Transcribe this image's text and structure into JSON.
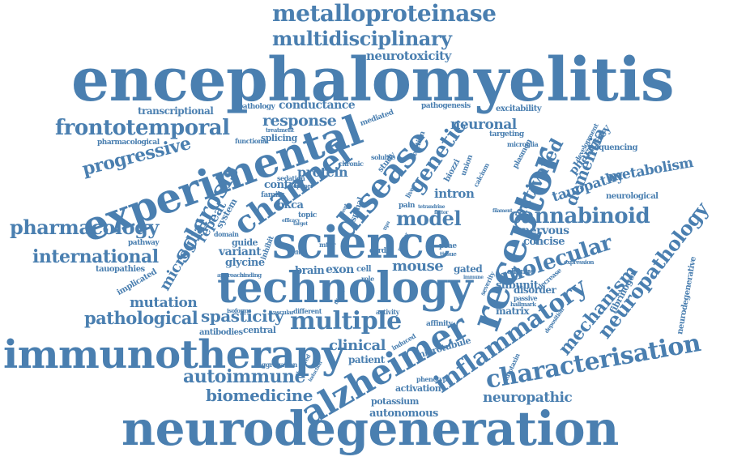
{
  "colors": {
    "word": "#4a7fb0",
    "background": "#ffffff"
  },
  "words": [
    "encephalomyelitis",
    "neurodegeneration",
    "experimental",
    "technology",
    "science",
    "immunotherapy",
    "receptor",
    "alzheimer",
    "disease",
    "channel",
    "characterisation",
    "multiple",
    "sclerosis",
    "cannabinoid",
    "inflammatory",
    "metalloproteinase",
    "multidisciplinary",
    "frontotemporal",
    "pharmacology",
    "molecular",
    "neuropathology",
    "genetic",
    "model",
    "international",
    "pathological",
    "autoimmune",
    "biomedicine",
    "mechanism",
    "neuropathic",
    "progressive",
    "spasticity",
    "response",
    "dementia",
    "activated",
    "metabolism",
    "tauopathy",
    "neurotoxicity",
    "mouse",
    "clinical",
    "mutation",
    "neuronal",
    "microglial",
    "protein",
    "pharmacy",
    "conductance",
    "repeat",
    "intron",
    "nervous",
    "concise",
    "variant",
    "glycine",
    "bkca",
    "exon",
    "brain",
    "potassium",
    "autonomous",
    "activation",
    "microtubule",
    "patient",
    "matrix",
    "subunit",
    "disorder",
    "transcriptional",
    "pharmacological",
    "splicing",
    "control",
    "sequencing",
    "neurological",
    "neurodegenerative",
    "fibrinogen",
    "tauopathies",
    "implicated",
    "system",
    "gated",
    "guide",
    "pathway",
    "antibodies",
    "central",
    "aggregation",
    "excitability",
    "pathogenesis",
    "mediated",
    "pathology",
    "functional",
    "treatment",
    "targeting",
    "plasmon",
    "microglia",
    "development",
    "family",
    "topic",
    "domain",
    "inhibit",
    "cell",
    "role",
    "spinal",
    "cord",
    "pain",
    "liver",
    "deletion",
    "study",
    "biozzi",
    "union",
    "calcium",
    "soluble",
    "chronic",
    "sedation",
    "opener",
    "mtbr",
    "peae",
    "tissue",
    "change",
    "passive",
    "severity",
    "decrease",
    "deposition",
    "autotaxin",
    "expression",
    "hallmark",
    "affinity",
    "induced",
    "phenotype",
    "different",
    "vascular",
    "activity",
    "isoforms",
    "approach",
    "binding",
    "efficacy",
    "observed",
    "induction",
    "trigger",
    "immune",
    "tetrandrine",
    "factor",
    "filament",
    "fhfp",
    "target",
    "mspt",
    "ttpa",
    "reporter"
  ]
}
